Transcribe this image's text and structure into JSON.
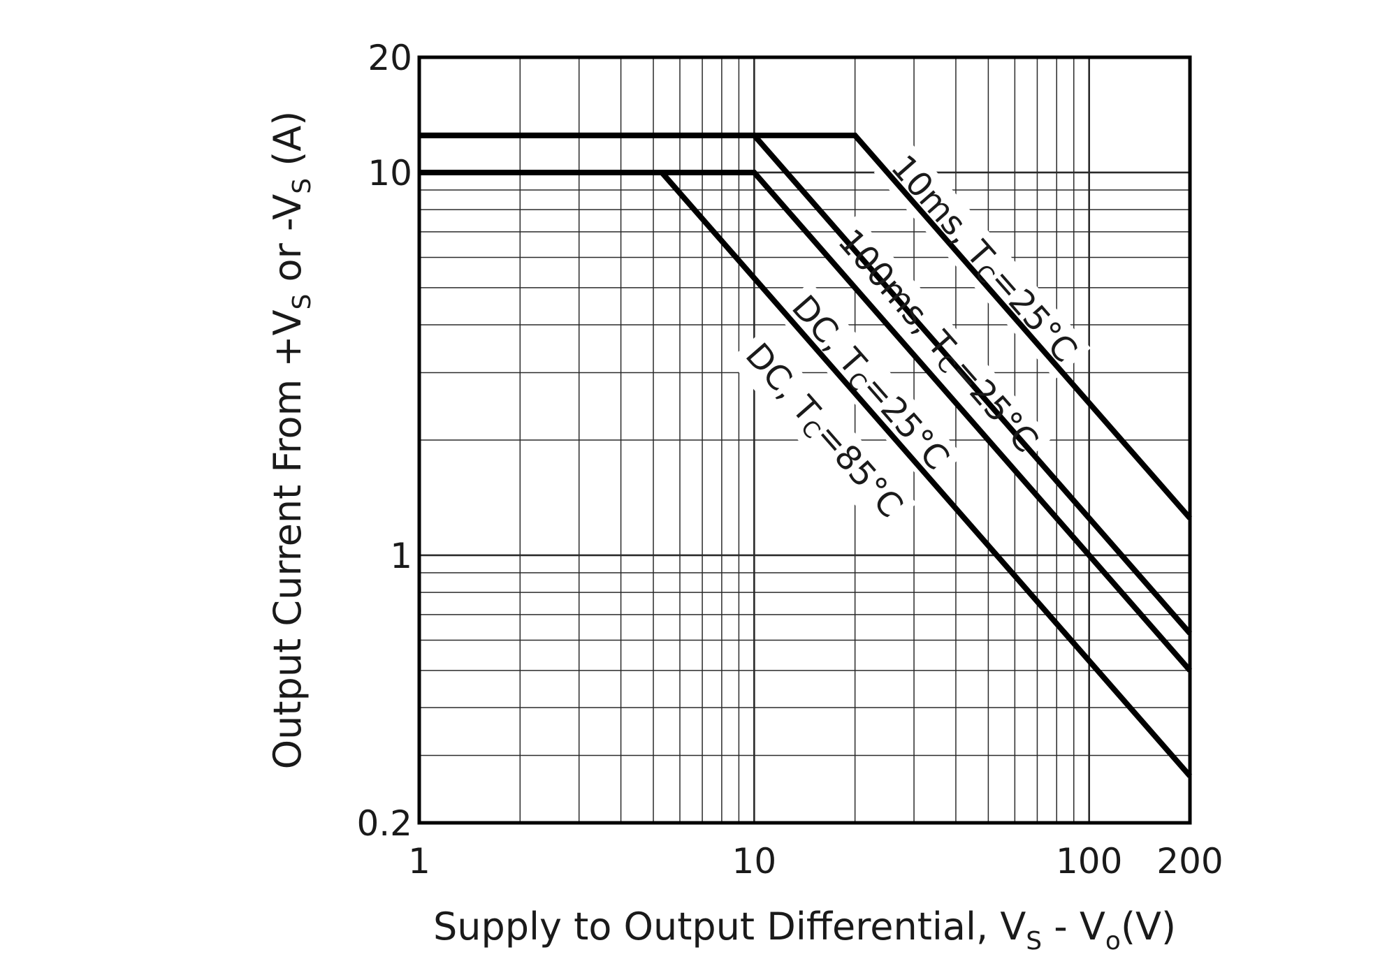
{
  "chart_data": {
    "type": "line",
    "title": "",
    "xscale": "log",
    "yscale": "log",
    "xlim": [
      1,
      200
    ],
    "ylim": [
      0.2,
      20
    ],
    "xticks": [
      1,
      10,
      100,
      200
    ],
    "xtick_labels": [
      "1",
      "10",
      "100",
      "200"
    ],
    "yticks": [
      0.2,
      1,
      10,
      20
    ],
    "ytick_labels": [
      "0.2",
      "1",
      "10",
      "20"
    ],
    "xlabel": {
      "parts": [
        "Supply to Output Differential, V",
        "S",
        " - V",
        "o",
        "(V)"
      ]
    },
    "ylabel": {
      "parts": [
        "Output Current From +V",
        "S",
        " or -V",
        "S",
        " (A)"
      ]
    },
    "grid": true,
    "series": [
      {
        "name": "10ms, TC=25°C",
        "label_parts": [
          "10ms, T",
          "C",
          "=25°C"
        ],
        "x": [
          1,
          20,
          200
        ],
        "y": [
          12.5,
          12.5,
          1.25
        ]
      },
      {
        "name": "100ms, TC=25°C",
        "label_parts": [
          "100ms, T",
          "C",
          "=25°C"
        ],
        "x": [
          1,
          10,
          200
        ],
        "y": [
          12.5,
          12.5,
          0.625
        ]
      },
      {
        "name": "DC, TC=25°C",
        "label_parts": [
          "DC, T",
          "C",
          "=25°C"
        ],
        "x": [
          1,
          10,
          200
        ],
        "y": [
          10,
          10,
          0.5
        ]
      },
      {
        "name": "DC, TC=85°C",
        "label_parts": [
          "DC, T",
          "C",
          "=85°C"
        ],
        "x": [
          1,
          5.3,
          200
        ],
        "y": [
          10,
          10,
          0.265
        ]
      }
    ]
  }
}
